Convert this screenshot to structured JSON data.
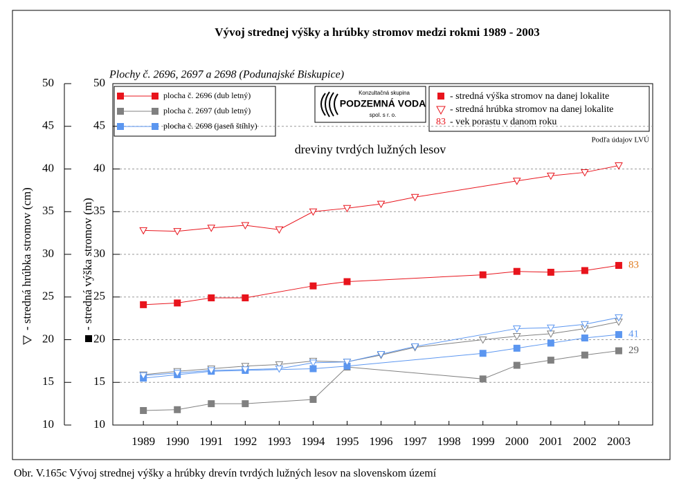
{
  "chart_data": {
    "type": "line",
    "title": "Vývoj strednej výšky a hrúbky stromov medzi rokmi 1989 - 2003",
    "subtitle": "Plochy č. 2696, 2697 a 2698 (Podunajské Biskupice)",
    "annotation": "dreviny tvrdých lužných lesov",
    "source": "Podľa údajov LVÚ",
    "y_label_left": "- stredná hrúbka stromov (cm)",
    "y_label_right": "- stredná výška stromov (m)",
    "caption": "Obr. V.165c Vývoj strednej výšky a hrúbky drevín tvrdých lužných lesov na slovenskom území",
    "logo": {
      "top": "Konzultačná skupina",
      "name": "PODZEMNÁ VODA",
      "bottom": "spol. s r. o."
    },
    "marker_legend": {
      "square": "- stredná výška stromov na danej lokalite",
      "triangle": "- stredná hrúbka stromov na danej lokalite",
      "age_number": "83",
      "age": "- vek porastu v danom roku"
    },
    "xlim": [
      1988.1,
      2004
    ],
    "xticks": [
      1989,
      1990,
      1991,
      1992,
      1993,
      1994,
      1995,
      1996,
      1997,
      1998,
      1999,
      2000,
      2001,
      2002,
      2003
    ],
    "ylim": [
      10,
      50
    ],
    "yticks": [
      10,
      15,
      20,
      25,
      30,
      35,
      40,
      45,
      50
    ],
    "grid": true,
    "series": [
      {
        "name": "plocha č. 2696 (dub letný)",
        "color": "#e8141c",
        "marker": "square",
        "x": [
          1989,
          1990,
          1991,
          1992,
          1994,
          1995,
          1999,
          2000,
          2001,
          2002,
          2003
        ],
        "values": [
          24.1,
          24.3,
          24.9,
          24.9,
          26.3,
          26.8,
          27.6,
          28.0,
          27.9,
          28.1,
          28.7
        ],
        "end_label": "83",
        "end_label_color": "#e07a1c"
      },
      {
        "name": "plocha č. 2697 (dub letný)",
        "color": "#808080",
        "marker": "square",
        "x": [
          1989,
          1990,
          1991,
          1992,
          1994,
          1995,
          1999,
          2000,
          2001,
          2002,
          2003
        ],
        "values": [
          11.7,
          11.8,
          12.5,
          12.5,
          13.0,
          16.8,
          15.4,
          17.0,
          17.6,
          18.2,
          18.7
        ],
        "end_label": "29",
        "end_label_color": "#606060"
      },
      {
        "name": "plocha č. 2698 (jaseň štíhly)",
        "color": "#5b96f0",
        "marker": "square",
        "x": [
          1989,
          1990,
          1991,
          1992,
          1994,
          1995,
          1999,
          2000,
          2001,
          2002,
          2003
        ],
        "values": [
          15.5,
          15.9,
          16.3,
          16.4,
          16.6,
          16.9,
          18.4,
          19.0,
          19.6,
          20.2,
          20.6
        ],
        "end_label": "41",
        "end_label_color": "#5b96f0"
      },
      {
        "color": "#e8141c",
        "marker": "triangle",
        "x": [
          1989,
          1990,
          1991,
          1992,
          1993,
          1994,
          1995,
          1996,
          1997,
          2000,
          2001,
          2002,
          2003
        ],
        "values": [
          32.8,
          32.7,
          33.1,
          33.4,
          32.9,
          35.0,
          35.4,
          35.9,
          36.7,
          38.6,
          39.2,
          39.6,
          40.4
        ]
      },
      {
        "color": "#808080",
        "marker": "triangle",
        "x": [
          1989,
          1990,
          1991,
          1992,
          1993,
          1994,
          1995,
          1996,
          1997,
          1999,
          2000,
          2001,
          2002,
          2003
        ],
        "values": [
          15.9,
          16.3,
          16.6,
          16.9,
          17.1,
          17.5,
          17.4,
          18.2,
          19.1,
          20.0,
          20.4,
          20.7,
          21.3,
          22.1
        ]
      },
      {
        "color": "#5b96f0",
        "marker": "triangle",
        "x": [
          1989,
          1990,
          1991,
          1992,
          1993,
          1994,
          1995,
          1996,
          1997,
          2000,
          2001,
          2002,
          2003
        ],
        "values": [
          15.8,
          16.1,
          16.4,
          16.5,
          16.6,
          17.3,
          17.4,
          18.3,
          19.2,
          21.3,
          21.4,
          21.8,
          22.6
        ]
      }
    ]
  }
}
